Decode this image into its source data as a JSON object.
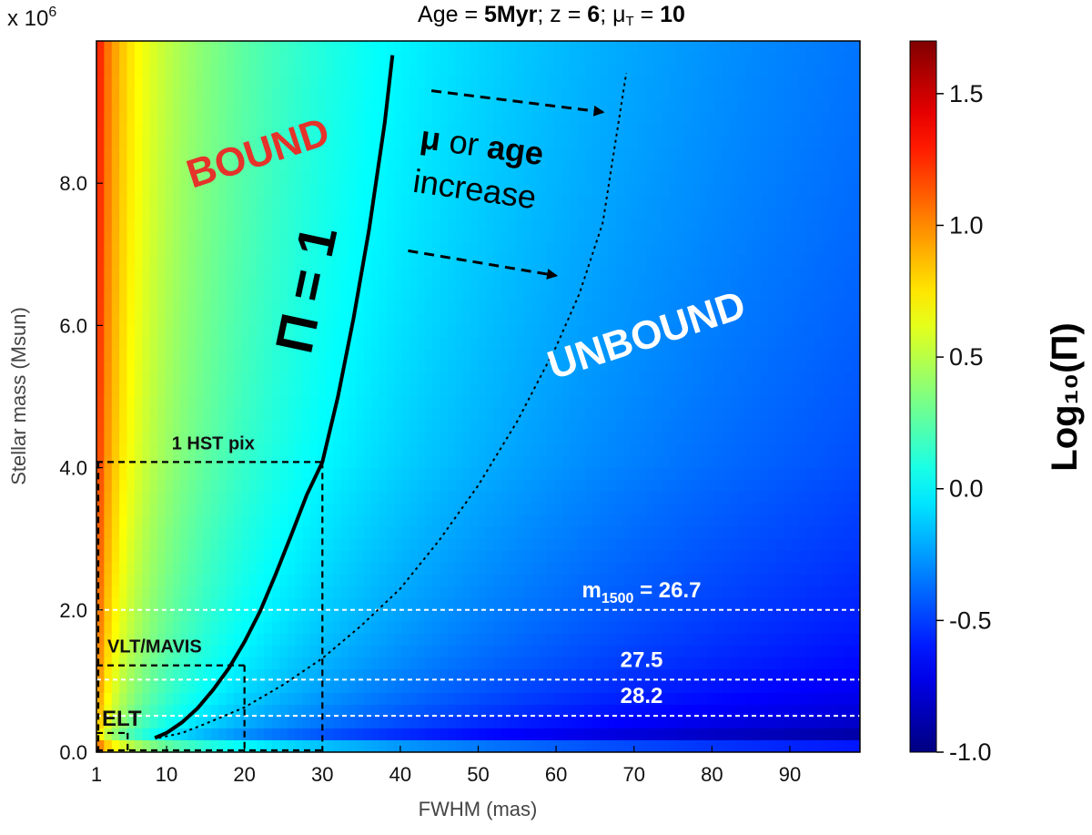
{
  "chart_data": {
    "type": "heatmap",
    "title": {
      "age_label": "Age = ",
      "age_value": "5Myr",
      "z_label": ";   z = ",
      "z_value": "6",
      "mu_label": ";   μ",
      "mu_sub": "T",
      "mu_eq": " = ",
      "mu_value": "10"
    },
    "xlabel": "FWHM (mas)",
    "ylabel": "Stellar mass (Msun)",
    "y_multiplier": {
      "base": "x 10",
      "exponent": "6"
    },
    "xlim": [
      1,
      99
    ],
    "ylim": [
      0,
      10
    ],
    "x_ticks": [
      1,
      10,
      20,
      30,
      40,
      50,
      60,
      70,
      80,
      90
    ],
    "y_ticks": [
      {
        "value": 0,
        "label": "0.0"
      },
      {
        "value": 2,
        "label": "2.0"
      },
      {
        "value": 4,
        "label": "4.0"
      },
      {
        "value": 6,
        "label": "6.0"
      },
      {
        "value": 8,
        "label": "8.0"
      }
    ],
    "colorbar": {
      "label": "Log₁₀(Π)",
      "range": [
        -1.0,
        1.7
      ],
      "ticks": [
        {
          "value": 1.5,
          "label": "1.5"
        },
        {
          "value": 1.0,
          "label": "1.0"
        },
        {
          "value": 0.5,
          "label": "0.5"
        },
        {
          "value": 0.0,
          "label": "0.0"
        },
        {
          "value": -0.5,
          "label": "-0.5"
        },
        {
          "value": -1.0,
          "label": "-1.0"
        }
      ],
      "colormap": "jet"
    },
    "pi_equals_1_curve": [
      [
        8.5,
        0.2
      ],
      [
        10,
        0.27
      ],
      [
        12,
        0.42
      ],
      [
        14,
        0.62
      ],
      [
        16,
        0.88
      ],
      [
        18,
        1.18
      ],
      [
        20,
        1.55
      ],
      [
        22,
        1.98
      ],
      [
        24,
        2.5
      ],
      [
        26,
        3.05
      ],
      [
        28,
        3.62
      ],
      [
        30,
        4.08
      ],
      [
        32,
        5.0
      ],
      [
        34,
        6.1
      ],
      [
        36,
        7.35
      ],
      [
        38,
        8.85
      ],
      [
        39,
        9.8
      ]
    ],
    "shifted_curve": [
      [
        9,
        0.2
      ],
      [
        12,
        0.27
      ],
      [
        15,
        0.4
      ],
      [
        20,
        0.63
      ],
      [
        25,
        0.95
      ],
      [
        30,
        1.32
      ],
      [
        35,
        1.78
      ],
      [
        40,
        2.3
      ],
      [
        45,
        2.98
      ],
      [
        50,
        3.75
      ],
      [
        55,
        4.65
      ],
      [
        60,
        5.7
      ],
      [
        63,
        6.45
      ],
      [
        66,
        7.45
      ],
      [
        69,
        9.55
      ]
    ],
    "resolution_boxes": [
      {
        "label": "1 HST pix",
        "fwhm": 30,
        "mass": 4.08
      },
      {
        "label": "VLT/MAVIS",
        "fwhm": 20,
        "mass": 1.22
      },
      {
        "label": "ELT",
        "fwhm": 5,
        "mass": 0.27
      }
    ],
    "magnitude_lines": [
      {
        "label_prefix": "m",
        "label_sub": "1500",
        "label_value": " = 26.7",
        "mass": 2.0
      },
      {
        "label_prefix": "",
        "label_sub": "",
        "label_value": "27.5",
        "mass": 1.02
      },
      {
        "label_prefix": "",
        "label_sub": "",
        "label_value": "28.2",
        "mass": 0.51
      }
    ],
    "region_labels": {
      "bound": "BOUND",
      "unbound": "UNBOUND",
      "pi_curve": "Π = 1"
    },
    "arrow_annotation": {
      "mu": "μ",
      "or": " or ",
      "age": "age",
      "increase": "increase"
    },
    "arrows": [
      {
        "from": [
          44,
          9.3
        ],
        "to": [
          66,
          9.0
        ]
      },
      {
        "from": [
          41,
          7.05
        ],
        "to": [
          60,
          6.7
        ]
      }
    ]
  }
}
